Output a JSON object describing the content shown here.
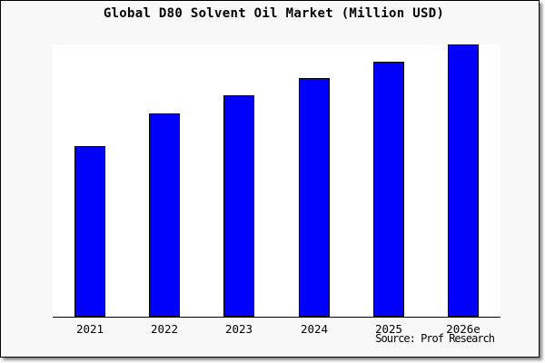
{
  "window": {
    "background": "#f8f8f8",
    "plot_background": "#ffffff",
    "border_color": "#000000",
    "shadow_color": "#999999"
  },
  "chart_data": {
    "type": "bar",
    "title": "Global D80 Solvent Oil Market (Million USD)",
    "categories": [
      "2021",
      "2022",
      "2023",
      "2024",
      "2025",
      "2026e"
    ],
    "values": [
      62.7,
      74.8,
      81.2,
      87.7,
      93.7,
      100.0
    ],
    "value_note": "No y-axis ticks or data labels are shown in the chart; values are estimated bar heights relative to 2026e = 100.",
    "ylim": [
      0,
      100.3
    ],
    "xlabel": "",
    "ylabel": "",
    "grid": false,
    "legend": false,
    "bar_color": "#0101fb",
    "bar_border_color": "#000000"
  },
  "source": {
    "label": "Source: Prof Research"
  }
}
